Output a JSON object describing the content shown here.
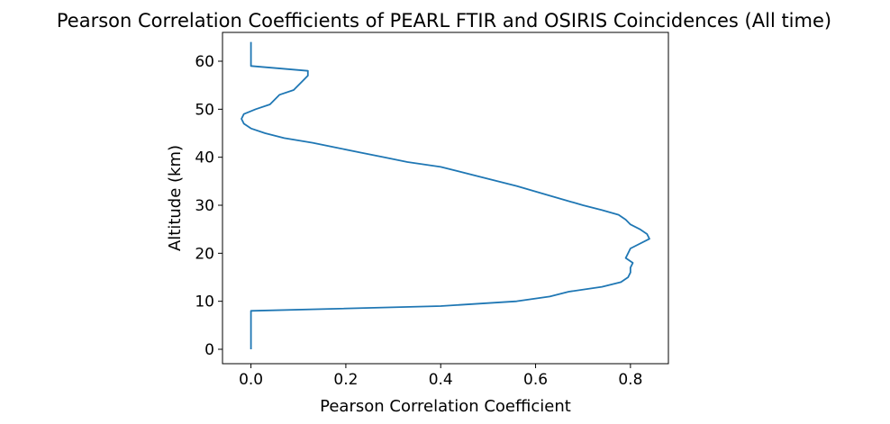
{
  "chart_data": {
    "type": "line",
    "title": "Pearson Correlation Coefficients of PEARL FTIR and OSIRIS Coincidences (All time)",
    "xlabel": "Pearson Correlation Coefficient",
    "ylabel": "Altitude (km)",
    "xlim": [
      -0.06,
      0.88
    ],
    "ylim": [
      -3,
      66
    ],
    "xticks": [
      0.0,
      0.2,
      0.4,
      0.6,
      0.8
    ],
    "xtick_labels": [
      "0.0",
      "0.2",
      "0.4",
      "0.6",
      "0.8"
    ],
    "yticks": [
      0,
      10,
      20,
      30,
      40,
      50,
      60
    ],
    "ytick_labels": [
      "0",
      "10",
      "20",
      "30",
      "40",
      "50",
      "60"
    ],
    "grid": false,
    "series": [
      {
        "color": "#1f77b4",
        "x": [
          0.0,
          0.0,
          0.0,
          0.4,
          0.56,
          0.63,
          0.67,
          0.74,
          0.78,
          0.795,
          0.8,
          0.8,
          0.805,
          0.79,
          0.8,
          0.84,
          0.835,
          0.82,
          0.8,
          0.79,
          0.775,
          0.74,
          0.7,
          0.63,
          0.56,
          0.48,
          0.4,
          0.33,
          0.28,
          0.23,
          0.18,
          0.13,
          0.07,
          0.03,
          0.0,
          -0.015,
          -0.02,
          -0.015,
          0.01,
          0.04,
          0.06,
          0.09,
          0.11,
          0.12,
          0.12,
          0.0,
          0.0
        ],
        "y": [
          0,
          4,
          8,
          9,
          10,
          11,
          12,
          13,
          14,
          15,
          16,
          17,
          18,
          19,
          21,
          23,
          24,
          25,
          26,
          27,
          28,
          29,
          30,
          32,
          34,
          36,
          38,
          39,
          40,
          41,
          42,
          43,
          44,
          45,
          46,
          47,
          48,
          49,
          50,
          51,
          53,
          54,
          56,
          57,
          58,
          59,
          64
        ]
      }
    ]
  }
}
